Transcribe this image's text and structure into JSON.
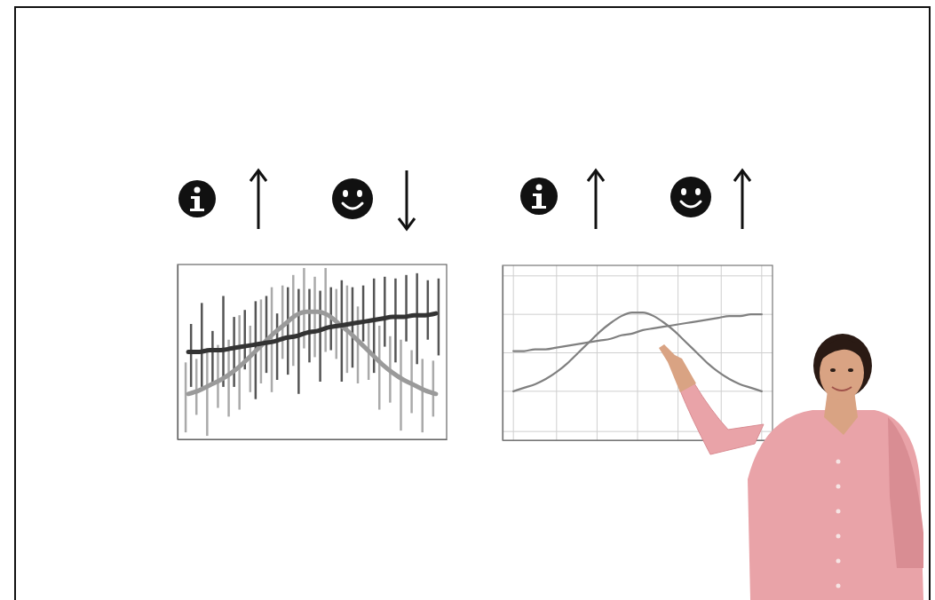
{
  "chart_data": [
    {
      "type": "line",
      "x": [
        0.4,
        0.8,
        1.2,
        1.6,
        2.0,
        2.4,
        2.8,
        3.2,
        3.6,
        4.0,
        4.4,
        4.8,
        5.2,
        5.6,
        6.0,
        6.4,
        6.8,
        7.2,
        7.6,
        8.0,
        8.4,
        8.8,
        9.2,
        9.6
      ],
      "xlim": [
        0,
        10
      ],
      "ylim": [
        0,
        10
      ],
      "grid": false,
      "tick_labels": false,
      "series": [
        {
          "type": "errorbar",
          "color": "#555555",
          "x": [
            0.5,
            0.9,
            1.3,
            1.7,
            2.1,
            2.5,
            2.9,
            3.3,
            3.7,
            4.1,
            4.5,
            4.9,
            5.3,
            5.7,
            6.1,
            6.5,
            6.9,
            7.3,
            7.7,
            8.1,
            8.5,
            8.9,
            9.3,
            9.7
          ],
          "values": [
            4.8,
            5.4,
            4.7,
            5.6,
            5.0,
            5.7,
            5.1,
            6.0,
            5.3,
            6.2,
            5.6,
            6.5,
            5.9,
            6.9,
            6.2,
            6.4,
            7.2,
            6.5,
            7.3,
            6.8,
            7.5,
            6.9,
            7.4,
            7.0
          ],
          "errors": [
            1.8,
            2.4,
            1.5,
            2.6,
            2.0,
            1.7,
            2.8,
            2.2,
            1.9,
            2.5,
            3.0,
            2.1,
            2.6,
            1.8,
            2.9,
            2.3,
            1.6,
            2.7,
            2.0,
            2.4,
            1.9,
            2.6,
            1.7,
            2.2
          ]
        },
        {
          "type": "errorbar",
          "color": "#aaaaaa",
          "x": [
            0.3,
            0.7,
            1.1,
            1.5,
            1.9,
            2.3,
            2.7,
            3.1,
            3.5,
            3.9,
            4.3,
            4.7,
            5.1,
            5.5,
            5.9,
            6.3,
            6.7,
            7.1,
            7.5,
            7.9,
            8.3,
            8.7,
            9.1,
            9.5
          ],
          "values": [
            2.4,
            3.0,
            2.7,
            3.6,
            3.5,
            4.4,
            4.6,
            5.6,
            5.7,
            6.7,
            6.8,
            7.5,
            7.0,
            7.4,
            6.6,
            6.3,
            5.4,
            5.1,
            4.1,
            4.0,
            3.1,
            3.3,
            2.5,
            2.9
          ],
          "errors": [
            2.0,
            1.6,
            2.5,
            1.8,
            2.2,
            2.7,
            1.9,
            2.4,
            3.0,
            2.1,
            2.6,
            2.3,
            2.3,
            2.4,
            2.0,
            2.5,
            2.2,
            1.7,
            2.4,
            1.9,
            2.6,
            1.8,
            2.1,
            1.6
          ]
        },
        {
          "type": "line",
          "color": "#9a9a9a",
          "values": [
            2.6,
            2.8,
            3.1,
            3.4,
            3.8,
            4.3,
            4.9,
            5.5,
            6.1,
            6.6,
            7.1,
            7.3,
            7.3,
            7.1,
            6.6,
            6.1,
            5.5,
            4.9,
            4.3,
            3.8,
            3.4,
            3.1,
            2.8,
            2.6
          ]
        },
        {
          "type": "line",
          "color": "#333333",
          "values": [
            5.0,
            5.0,
            5.1,
            5.1,
            5.2,
            5.3,
            5.4,
            5.5,
            5.6,
            5.8,
            5.9,
            6.1,
            6.2,
            6.4,
            6.5,
            6.6,
            6.7,
            6.8,
            6.9,
            7.0,
            7.0,
            7.1,
            7.1,
            7.2
          ]
        }
      ]
    },
    {
      "type": "line",
      "x": [
        0.4,
        0.8,
        1.2,
        1.6,
        2.0,
        2.4,
        2.8,
        3.2,
        3.6,
        4.0,
        4.4,
        4.8,
        5.2,
        5.6,
        6.0,
        6.4,
        6.8,
        7.2,
        7.6,
        8.0,
        8.4,
        8.8,
        9.2,
        9.6
      ],
      "xlim": [
        0,
        10
      ],
      "ylim": [
        0,
        10
      ],
      "xticks": [
        0.4,
        2.0,
        3.5,
        5.0,
        6.5,
        8.1,
        9.6
      ],
      "yticks": [
        0.5,
        2.8,
        5.0,
        7.2,
        9.4
      ],
      "grid": true,
      "tick_labels": false,
      "series": [
        {
          "type": "line",
          "color": "#808080",
          "values": [
            2.8,
            3.0,
            3.2,
            3.5,
            3.9,
            4.4,
            5.0,
            5.6,
            6.2,
            6.7,
            7.1,
            7.3,
            7.3,
            7.1,
            6.7,
            6.2,
            5.6,
            5.0,
            4.4,
            3.9,
            3.5,
            3.2,
            3.0,
            2.8
          ]
        },
        {
          "type": "line",
          "color": "#808080",
          "values": [
            5.1,
            5.1,
            5.2,
            5.2,
            5.3,
            5.4,
            5.5,
            5.6,
            5.7,
            5.8,
            6.0,
            6.1,
            6.3,
            6.4,
            6.5,
            6.6,
            6.7,
            6.8,
            6.9,
            7.0,
            7.1,
            7.1,
            7.2,
            7.2
          ]
        }
      ]
    }
  ]
}
